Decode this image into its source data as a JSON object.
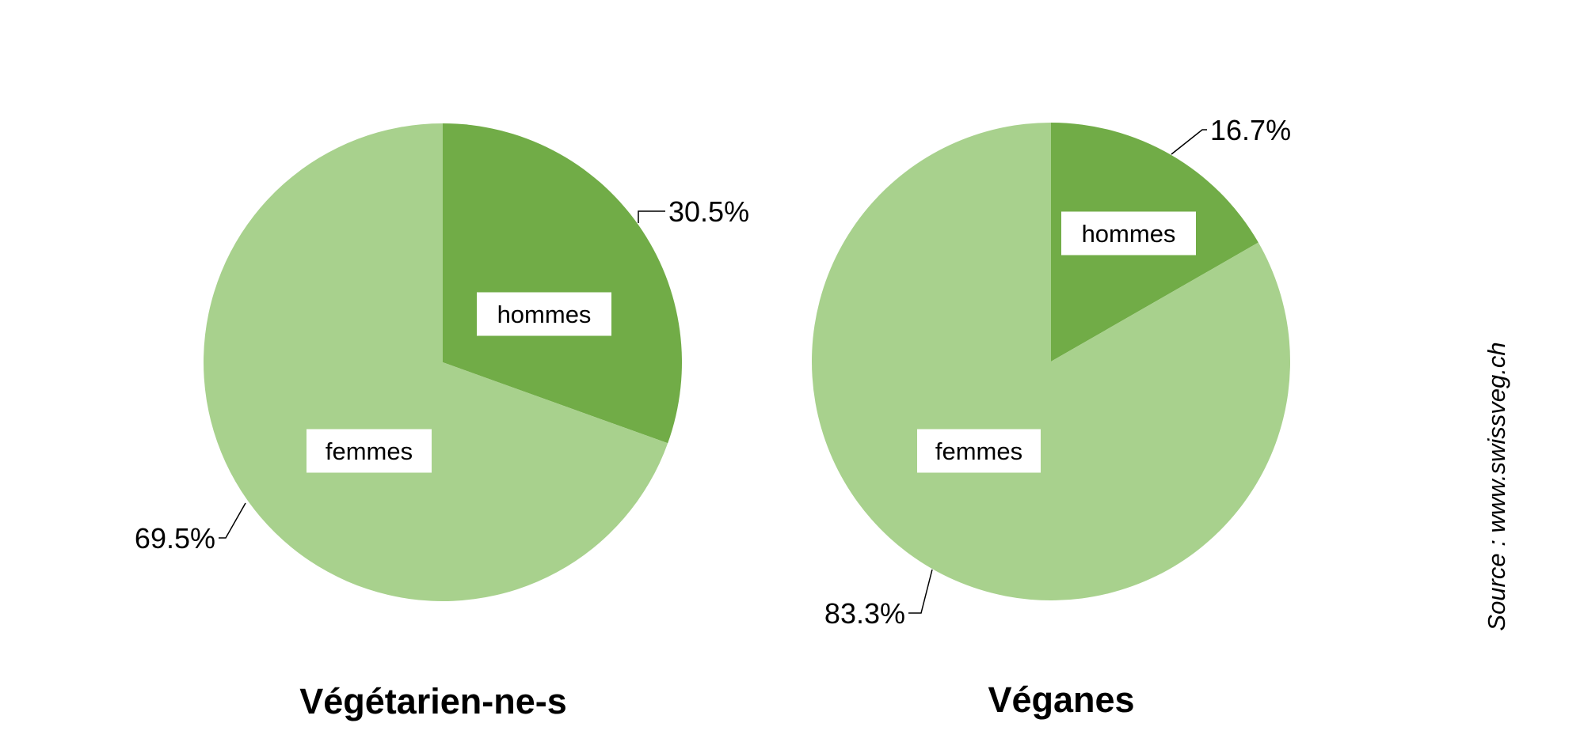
{
  "chart_data": [
    {
      "type": "pie",
      "title": "Végétarien-ne-s",
      "slices": [
        {
          "label": "hommes",
          "value": 30.5,
          "display": "30.5%",
          "color": "#71ac47"
        },
        {
          "label": "femmes",
          "value": 69.5,
          "display": "69.5%",
          "color": "#a8d18d"
        }
      ]
    },
    {
      "type": "pie",
      "title": "Véganes",
      "slices": [
        {
          "label": "hommes",
          "value": 16.7,
          "display": "16.7%",
          "color": "#71ac47"
        },
        {
          "label": "femmes",
          "value": 83.3,
          "display": "83.3%",
          "color": "#a8d18d"
        }
      ]
    }
  ],
  "source": "Source : www.swissveg.ch"
}
